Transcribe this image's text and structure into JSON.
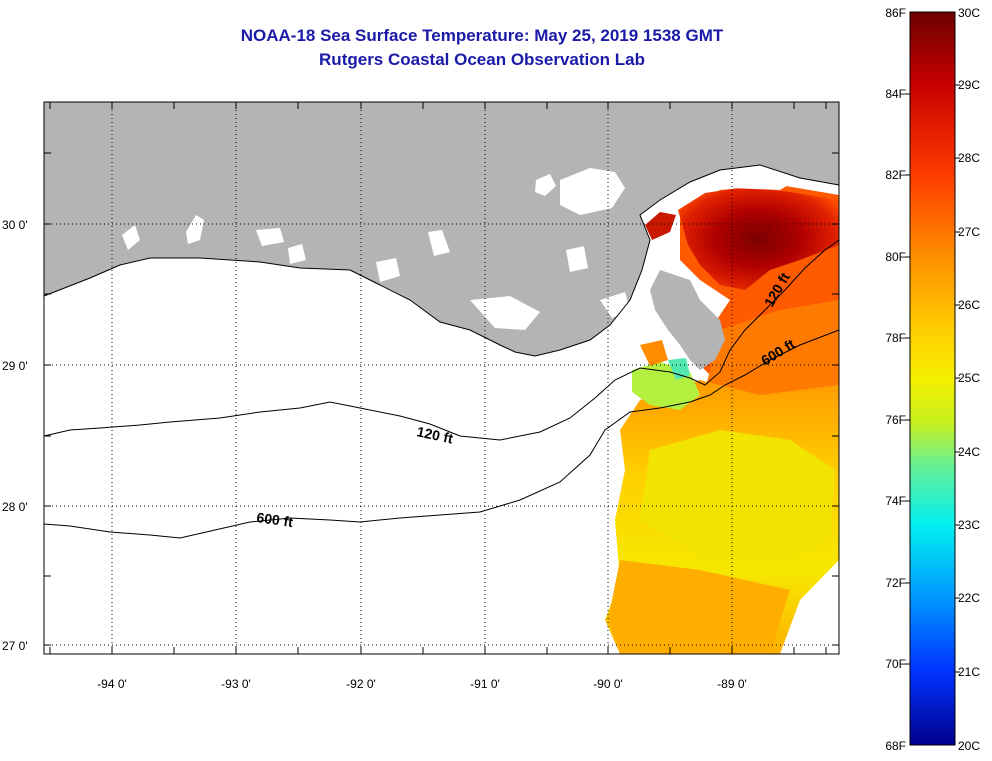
{
  "header": {
    "title": "NOAA-18 Sea Surface Temperature:  May 25, 2019 1538 GMT",
    "subtitle": "Rutgers Coastal Ocean Observation Lab"
  },
  "map": {
    "lon_ticks": [
      "-94 0'",
      "-93 0'",
      "-92 0'",
      "-91 0'",
      "-90 0'",
      "-89 0'"
    ],
    "lat_ticks": [
      "30 0'",
      "29 0'",
      "28 0'",
      "27 0'"
    ],
    "contour_labels": [
      "120 ft",
      "120 ft",
      "600 ft",
      "600 ft"
    ],
    "colors": {
      "land": "#b4b4b4",
      "ocean_nodata": "#ffffff",
      "frame": "#000000"
    }
  },
  "colorbar": {
    "fahrenheit": [
      "86F",
      "84F",
      "82F",
      "80F",
      "78F",
      "76F",
      "74F",
      "72F",
      "70F",
      "68F"
    ],
    "celsius": [
      "30C",
      "29C",
      "28C",
      "27C",
      "26C",
      "25C",
      "24C",
      "23C",
      "22C",
      "21C",
      "20C"
    ],
    "gradient": [
      "#7a0000",
      "#c40000",
      "#ff3000",
      "#ff8c00",
      "#ffc800",
      "#f5f000",
      "#c8f000",
      "#64f096",
      "#00f0f0",
      "#0096ff",
      "#0032ff",
      "#0000c8",
      "#00008c"
    ]
  }
}
